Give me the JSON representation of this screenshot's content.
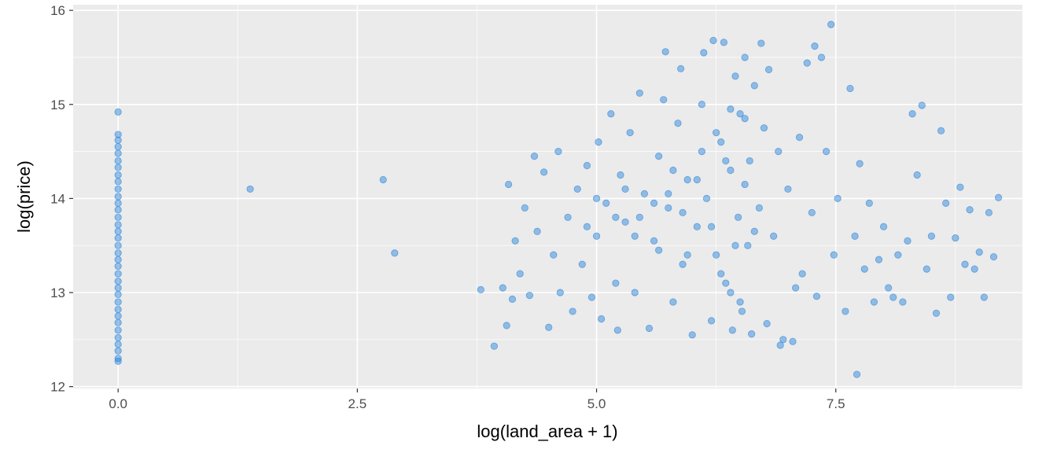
{
  "chart_data": {
    "type": "scatter",
    "title": "",
    "xlabel": "log(land_area + 1)",
    "ylabel": "log(price)",
    "xlim": [
      -0.47,
      9.45
    ],
    "ylim": [
      11.98,
      16.06
    ],
    "x_ticks": [
      0,
      2.5,
      5,
      7.5
    ],
    "x_tick_labels": [
      "0.0",
      "2.5",
      "5.0",
      "7.5"
    ],
    "y_ticks": [
      12,
      13,
      14,
      15,
      16
    ],
    "y_tick_labels": [
      "12",
      "13",
      "14",
      "15",
      "16"
    ],
    "grid": true,
    "background": "#ebebeb",
    "point_color": "#1f7fd9",
    "point_opacity": 0.45,
    "series": [
      {
        "values": [
          [
            0,
            14.92
          ],
          [
            0,
            14.68
          ],
          [
            0,
            14.62
          ],
          [
            0,
            14.55
          ],
          [
            0,
            14.48
          ],
          [
            0,
            14.4
          ],
          [
            0,
            14.33
          ],
          [
            0,
            14.25
          ],
          [
            0,
            14.18
          ],
          [
            0,
            14.1
          ],
          [
            0,
            14.02
          ],
          [
            0,
            13.95
          ],
          [
            0,
            13.88
          ],
          [
            0,
            13.8
          ],
          [
            0,
            13.72
          ],
          [
            0,
            13.65
          ],
          [
            0,
            13.58
          ],
          [
            0,
            13.5
          ],
          [
            0,
            13.42
          ],
          [
            0,
            13.35
          ],
          [
            0,
            13.28
          ],
          [
            0,
            13.2
          ],
          [
            0,
            13.12
          ],
          [
            0,
            13.05
          ],
          [
            0,
            12.98
          ],
          [
            0,
            12.9
          ],
          [
            0,
            12.82
          ],
          [
            0,
            12.75
          ],
          [
            0,
            12.68
          ],
          [
            0,
            12.6
          ],
          [
            0,
            12.52
          ],
          [
            0,
            12.45
          ],
          [
            0,
            12.38
          ],
          [
            0,
            12.3
          ],
          [
            0,
            12.27
          ],
          [
            1.38,
            14.1
          ],
          [
            2.77,
            14.2
          ],
          [
            2.89,
            13.42
          ],
          [
            3.79,
            13.03
          ],
          [
            3.93,
            12.43
          ],
          [
            4.02,
            13.05
          ],
          [
            4.06,
            12.65
          ],
          [
            4.08,
            14.15
          ],
          [
            4.12,
            12.93
          ],
          [
            4.15,
            13.55
          ],
          [
            4.2,
            13.2
          ],
          [
            4.25,
            13.9
          ],
          [
            4.3,
            12.97
          ],
          [
            4.35,
            14.45
          ],
          [
            4.38,
            13.65
          ],
          [
            4.45,
            14.28
          ],
          [
            4.5,
            12.63
          ],
          [
            4.55,
            13.4
          ],
          [
            4.6,
            14.5
          ],
          [
            4.62,
            13.0
          ],
          [
            4.7,
            13.8
          ],
          [
            4.75,
            12.8
          ],
          [
            4.8,
            14.1
          ],
          [
            4.85,
            13.3
          ],
          [
            4.9,
            14.35
          ],
          [
            4.95,
            12.95
          ],
          [
            5.0,
            13.6
          ],
          [
            5.02,
            14.6
          ],
          [
            5.05,
            12.72
          ],
          [
            5.1,
            13.95
          ],
          [
            5.15,
            14.9
          ],
          [
            5.2,
            13.1
          ],
          [
            5.22,
            12.6
          ],
          [
            5.25,
            14.25
          ],
          [
            5.3,
            13.75
          ],
          [
            5.35,
            14.7
          ],
          [
            5.4,
            13.0
          ],
          [
            5.45,
            15.12
          ],
          [
            5.5,
            14.05
          ],
          [
            5.55,
            12.62
          ],
          [
            5.6,
            13.55
          ],
          [
            5.65,
            14.45
          ],
          [
            5.7,
            15.05
          ],
          [
            5.72,
            15.56
          ],
          [
            5.75,
            13.9
          ],
          [
            5.8,
            12.9
          ],
          [
            5.85,
            14.8
          ],
          [
            5.88,
            15.38
          ],
          [
            5.9,
            13.3
          ],
          [
            5.95,
            14.2
          ],
          [
            6.0,
            12.55
          ],
          [
            6.05,
            13.7
          ],
          [
            6.1,
            15.0
          ],
          [
            6.12,
            15.55
          ],
          [
            6.15,
            14.0
          ],
          [
            6.2,
            12.7
          ],
          [
            6.22,
            15.68
          ],
          [
            6.25,
            13.4
          ],
          [
            6.3,
            14.6
          ],
          [
            6.33,
            15.66
          ],
          [
            6.35,
            13.1
          ],
          [
            6.4,
            14.3
          ],
          [
            6.42,
            12.6
          ],
          [
            6.45,
            15.3
          ],
          [
            6.48,
            13.8
          ],
          [
            6.5,
            14.9
          ],
          [
            6.52,
            12.8
          ],
          [
            6.55,
            15.5
          ],
          [
            6.58,
            13.5
          ],
          [
            6.6,
            14.4
          ],
          [
            6.62,
            12.56
          ],
          [
            6.65,
            15.2
          ],
          [
            6.7,
            13.9
          ],
          [
            6.72,
            15.65
          ],
          [
            6.75,
            14.75
          ],
          [
            6.78,
            12.67
          ],
          [
            6.8,
            15.37
          ],
          [
            6.85,
            13.6
          ],
          [
            6.9,
            14.5
          ],
          [
            6.92,
            12.44
          ],
          [
            6.95,
            12.5
          ],
          [
            7.0,
            14.1
          ],
          [
            7.05,
            12.48
          ],
          [
            7.08,
            13.05
          ],
          [
            7.12,
            14.65
          ],
          [
            7.15,
            13.2
          ],
          [
            7.2,
            15.44
          ],
          [
            7.25,
            13.85
          ],
          [
            7.28,
            15.62
          ],
          [
            7.3,
            12.96
          ],
          [
            7.35,
            15.5
          ],
          [
            7.4,
            14.5
          ],
          [
            7.45,
            15.85
          ],
          [
            7.48,
            13.4
          ],
          [
            7.52,
            14.0
          ],
          [
            7.6,
            12.8
          ],
          [
            7.65,
            15.17
          ],
          [
            7.7,
            13.6
          ],
          [
            7.72,
            12.13
          ],
          [
            7.75,
            14.37
          ],
          [
            7.8,
            13.25
          ],
          [
            7.85,
            13.95
          ],
          [
            7.9,
            12.9
          ],
          [
            7.95,
            13.35
          ],
          [
            8.0,
            13.7
          ],
          [
            8.05,
            13.05
          ],
          [
            8.1,
            12.95
          ],
          [
            8.15,
            13.4
          ],
          [
            8.2,
            12.9
          ],
          [
            8.25,
            13.55
          ],
          [
            8.3,
            14.9
          ],
          [
            8.35,
            14.25
          ],
          [
            8.4,
            14.99
          ],
          [
            8.45,
            13.25
          ],
          [
            8.5,
            13.6
          ],
          [
            8.55,
            12.78
          ],
          [
            8.6,
            14.72
          ],
          [
            8.65,
            13.95
          ],
          [
            8.7,
            12.95
          ],
          [
            8.75,
            13.58
          ],
          [
            8.8,
            14.12
          ],
          [
            8.85,
            13.3
          ],
          [
            8.9,
            13.88
          ],
          [
            8.95,
            13.25
          ],
          [
            9.0,
            13.43
          ],
          [
            9.05,
            12.95
          ],
          [
            9.1,
            13.85
          ],
          [
            9.15,
            13.38
          ],
          [
            9.2,
            14.01
          ],
          [
            5.3,
            14.1
          ],
          [
            5.45,
            13.8
          ],
          [
            5.6,
            13.95
          ],
          [
            5.75,
            14.05
          ],
          [
            5.9,
            13.85
          ],
          [
            6.05,
            14.2
          ],
          [
            6.2,
            13.7
          ],
          [
            6.35,
            14.4
          ],
          [
            6.45,
            13.5
          ],
          [
            6.55,
            14.15
          ],
          [
            6.65,
            13.65
          ],
          [
            6.3,
            13.2
          ],
          [
            6.4,
            13.0
          ],
          [
            6.5,
            12.9
          ],
          [
            5.4,
            13.6
          ],
          [
            5.2,
            13.8
          ],
          [
            4.9,
            13.7
          ],
          [
            5.0,
            14.0
          ],
          [
            5.8,
            14.3
          ],
          [
            6.1,
            14.5
          ],
          [
            6.25,
            14.7
          ],
          [
            6.4,
            14.95
          ],
          [
            6.55,
            14.85
          ],
          [
            5.65,
            13.45
          ],
          [
            5.95,
            13.4
          ]
        ]
      }
    ]
  }
}
